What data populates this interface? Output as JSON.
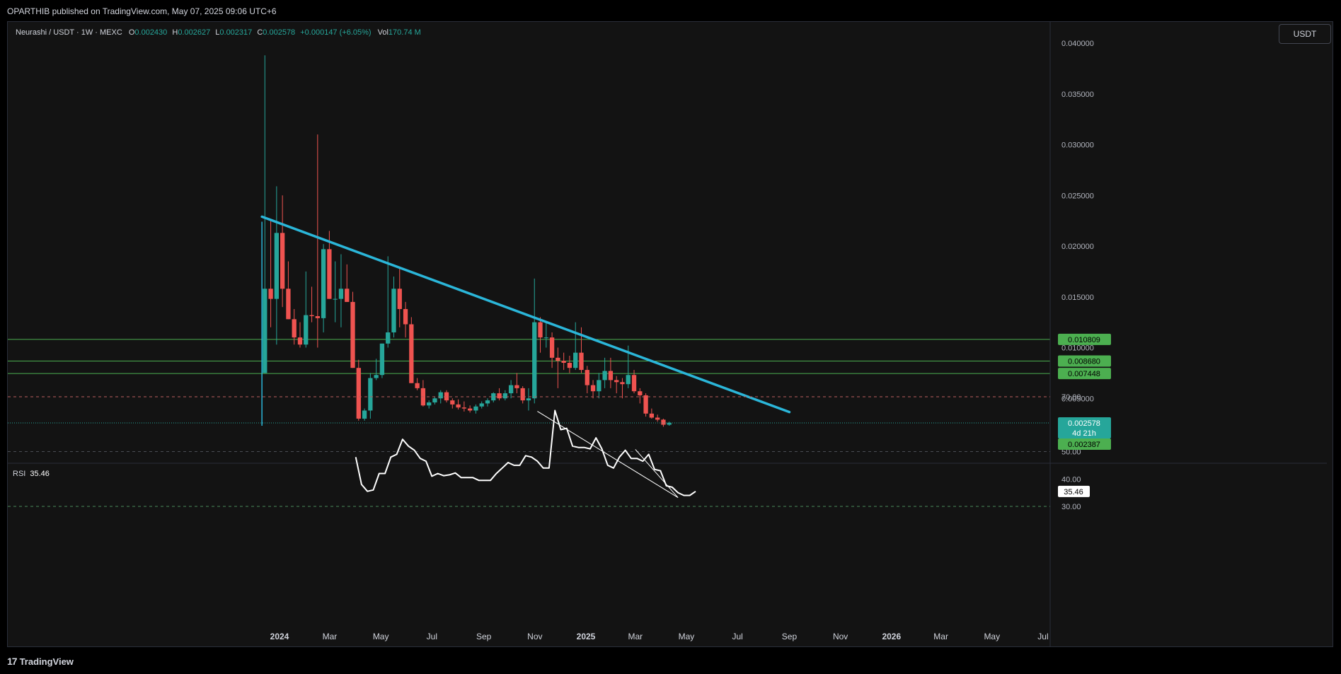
{
  "header": {
    "published": "OPARTHIB published on TradingView.com, May 07, 2025 09:06 UTC+6"
  },
  "footer": {
    "logo_text": "TradingView",
    "logo_mark": "17"
  },
  "legend": {
    "symbol": "Neurashi / USDT · 1W · MEXC",
    "o_label": "O",
    "o": "0.002430",
    "h_label": "H",
    "h": "0.002627",
    "l_label": "L",
    "l": "0.002317",
    "c_label": "C",
    "c": "0.002578",
    "change": "+0.000147 (+6.05%)",
    "vol_label": "Vol",
    "vol": "170.74 M"
  },
  "currency_button": "USDT",
  "rsi_legend": {
    "label": "RSI",
    "value": "35.46"
  },
  "colors": {
    "up": "#26a69a",
    "down": "#ef5350",
    "trendline": "#2bb6d9",
    "level": "#4caf50",
    "background": "#131313",
    "rsi_line": "#ffffff"
  },
  "chart_data": [
    {
      "type": "candlestick",
      "interval": "1W",
      "y_range": [
        0.0,
        0.04
      ],
      "y_ticks": [
        "0.040000",
        "0.035000",
        "0.030000",
        "0.025000",
        "0.020000",
        "0.015000",
        "0.010000",
        "0.005000"
      ],
      "x_ticks": [
        {
          "label": "2024",
          "date": "2024-01-01"
        },
        {
          "label": "Mar",
          "date": "2024-03-01"
        },
        {
          "label": "May",
          "date": "2024-05-01"
        },
        {
          "label": "Jul",
          "date": "2024-07-01"
        },
        {
          "label": "Sep",
          "date": "2024-09-01"
        },
        {
          "label": "Nov",
          "date": "2024-11-01"
        },
        {
          "label": "2025",
          "date": "2025-01-01"
        },
        {
          "label": "Mar",
          "date": "2025-03-01"
        },
        {
          "label": "May",
          "date": "2025-05-01"
        },
        {
          "label": "Jul",
          "date": "2025-07-01"
        },
        {
          "label": "Sep",
          "date": "2025-09-01"
        },
        {
          "label": "Nov",
          "date": "2025-11-01"
        },
        {
          "label": "2026",
          "date": "2026-01-01"
        },
        {
          "label": "Mar",
          "date": "2026-03-01"
        },
        {
          "label": "May",
          "date": "2026-05-01"
        },
        {
          "label": "Jul",
          "date": "2026-07-01"
        }
      ],
      "first_candle_date": "2023-12-11",
      "candles": [
        {
          "o": 0.0075,
          "h": 0.0388,
          "l": 0.0075,
          "c": 0.0158
        },
        {
          "o": 0.0158,
          "h": 0.0225,
          "l": 0.012,
          "c": 0.0148
        },
        {
          "o": 0.0148,
          "h": 0.0259,
          "l": 0.0103,
          "c": 0.0213
        },
        {
          "o": 0.0213,
          "h": 0.025,
          "l": 0.014,
          "c": 0.0158
        },
        {
          "o": 0.0158,
          "h": 0.0185,
          "l": 0.0128,
          "c": 0.0128
        },
        {
          "o": 0.0128,
          "h": 0.0138,
          "l": 0.0103,
          "c": 0.011
        },
        {
          "o": 0.011,
          "h": 0.0125,
          "l": 0.01,
          "c": 0.0103
        },
        {
          "o": 0.0103,
          "h": 0.0175,
          "l": 0.01,
          "c": 0.0132
        },
        {
          "o": 0.0132,
          "h": 0.016,
          "l": 0.0125,
          "c": 0.0131
        },
        {
          "o": 0.0131,
          "h": 0.031,
          "l": 0.01,
          "c": 0.0129
        },
        {
          "o": 0.0129,
          "h": 0.0202,
          "l": 0.0115,
          "c": 0.0197
        },
        {
          "o": 0.0197,
          "h": 0.0215,
          "l": 0.0148,
          "c": 0.0148
        },
        {
          "o": 0.0148,
          "h": 0.0185,
          "l": 0.0125,
          "c": 0.0148
        },
        {
          "o": 0.0148,
          "h": 0.0192,
          "l": 0.012,
          "c": 0.0158
        },
        {
          "o": 0.0158,
          "h": 0.0182,
          "l": 0.0145,
          "c": 0.0145
        },
        {
          "o": 0.0145,
          "h": 0.0155,
          "l": 0.008,
          "c": 0.008
        },
        {
          "o": 0.008,
          "h": 0.0088,
          "l": 0.0028,
          "c": 0.003
        },
        {
          "o": 0.003,
          "h": 0.004,
          "l": 0.0028,
          "c": 0.0038
        },
        {
          "o": 0.0038,
          "h": 0.0075,
          "l": 0.003,
          "c": 0.007
        },
        {
          "o": 0.007,
          "h": 0.0089,
          "l": 0.0068,
          "c": 0.0073
        },
        {
          "o": 0.0073,
          "h": 0.0104,
          "l": 0.007,
          "c": 0.0104
        },
        {
          "o": 0.0104,
          "h": 0.019,
          "l": 0.01,
          "c": 0.0115
        },
        {
          "o": 0.0115,
          "h": 0.017,
          "l": 0.011,
          "c": 0.0158
        },
        {
          "o": 0.0158,
          "h": 0.018,
          "l": 0.012,
          "c": 0.0138
        },
        {
          "o": 0.0138,
          "h": 0.0145,
          "l": 0.011,
          "c": 0.0123
        },
        {
          "o": 0.0123,
          "h": 0.013,
          "l": 0.0065,
          "c": 0.0065
        },
        {
          "o": 0.0065,
          "h": 0.007,
          "l": 0.0058,
          "c": 0.006
        },
        {
          "o": 0.006,
          "h": 0.0068,
          "l": 0.0042,
          "c": 0.0043
        },
        {
          "o": 0.0043,
          "h": 0.0048,
          "l": 0.004,
          "c": 0.0046
        },
        {
          "o": 0.0046,
          "h": 0.0052,
          "l": 0.0044,
          "c": 0.005
        },
        {
          "o": 0.005,
          "h": 0.0058,
          "l": 0.0045,
          "c": 0.0056
        },
        {
          "o": 0.0056,
          "h": 0.0058,
          "l": 0.0046,
          "c": 0.0048
        },
        {
          "o": 0.0048,
          "h": 0.005,
          "l": 0.004,
          "c": 0.0044
        },
        {
          "o": 0.0044,
          "h": 0.0049,
          "l": 0.0039,
          "c": 0.0041
        },
        {
          "o": 0.0041,
          "h": 0.0047,
          "l": 0.0037,
          "c": 0.004
        },
        {
          "o": 0.004,
          "h": 0.0043,
          "l": 0.0036,
          "c": 0.0038
        },
        {
          "o": 0.0038,
          "h": 0.0044,
          "l": 0.0035,
          "c": 0.0042
        },
        {
          "o": 0.0042,
          "h": 0.0047,
          "l": 0.004,
          "c": 0.0045
        },
        {
          "o": 0.0045,
          "h": 0.005,
          "l": 0.0042,
          "c": 0.0048
        },
        {
          "o": 0.0048,
          "h": 0.0056,
          "l": 0.0046,
          "c": 0.0055
        },
        {
          "o": 0.0055,
          "h": 0.006,
          "l": 0.0048,
          "c": 0.005
        },
        {
          "o": 0.005,
          "h": 0.0058,
          "l": 0.0048,
          "c": 0.0055
        },
        {
          "o": 0.0055,
          "h": 0.0068,
          "l": 0.005,
          "c": 0.0063
        },
        {
          "o": 0.0063,
          "h": 0.0075,
          "l": 0.0055,
          "c": 0.006
        },
        {
          "o": 0.006,
          "h": 0.0062,
          "l": 0.0045,
          "c": 0.0048
        },
        {
          "o": 0.0048,
          "h": 0.006,
          "l": 0.0038,
          "c": 0.005
        },
        {
          "o": 0.005,
          "h": 0.0168,
          "l": 0.0045,
          "c": 0.0125
        },
        {
          "o": 0.0125,
          "h": 0.013,
          "l": 0.0095,
          "c": 0.011
        },
        {
          "o": 0.011,
          "h": 0.0125,
          "l": 0.01,
          "c": 0.011
        },
        {
          "o": 0.011,
          "h": 0.0115,
          "l": 0.008,
          "c": 0.009
        },
        {
          "o": 0.009,
          "h": 0.01,
          "l": 0.006,
          "c": 0.0087
        },
        {
          "o": 0.0087,
          "h": 0.0095,
          "l": 0.0078,
          "c": 0.0085
        },
        {
          "o": 0.0085,
          "h": 0.0092,
          "l": 0.0075,
          "c": 0.008
        },
        {
          "o": 0.008,
          "h": 0.0125,
          "l": 0.0078,
          "c": 0.0095
        },
        {
          "o": 0.0095,
          "h": 0.012,
          "l": 0.0075,
          "c": 0.0078
        },
        {
          "o": 0.0078,
          "h": 0.0082,
          "l": 0.0055,
          "c": 0.0063
        },
        {
          "o": 0.0063,
          "h": 0.0068,
          "l": 0.005,
          "c": 0.0057
        },
        {
          "o": 0.0057,
          "h": 0.0075,
          "l": 0.005,
          "c": 0.0068
        },
        {
          "o": 0.0068,
          "h": 0.009,
          "l": 0.006,
          "c": 0.0077
        },
        {
          "o": 0.0077,
          "h": 0.009,
          "l": 0.006,
          "c": 0.0068
        },
        {
          "o": 0.0068,
          "h": 0.0072,
          "l": 0.0055,
          "c": 0.0066
        },
        {
          "o": 0.0066,
          "h": 0.007,
          "l": 0.005,
          "c": 0.0064
        },
        {
          "o": 0.0064,
          "h": 0.0102,
          "l": 0.006,
          "c": 0.0073
        },
        {
          "o": 0.0073,
          "h": 0.0078,
          "l": 0.0055,
          "c": 0.0057
        },
        {
          "o": 0.0057,
          "h": 0.006,
          "l": 0.0045,
          "c": 0.0053
        },
        {
          "o": 0.0053,
          "h": 0.0055,
          "l": 0.0032,
          "c": 0.0035
        },
        {
          "o": 0.0035,
          "h": 0.004,
          "l": 0.003,
          "c": 0.0031
        },
        {
          "o": 0.0031,
          "h": 0.0034,
          "l": 0.0027,
          "c": 0.0029
        },
        {
          "o": 0.0029,
          "h": 0.003,
          "l": 0.0022,
          "c": 0.0024
        },
        {
          "o": 0.0024,
          "h": 0.0027,
          "l": 0.0023,
          "c": 0.0026
        }
      ],
      "horizontal_levels": [
        {
          "price": 0.010809,
          "label": "0.010809"
        },
        {
          "price": 0.00868,
          "label": "0.008680"
        },
        {
          "price": 0.007448,
          "label": "0.007448"
        }
      ],
      "current_price": {
        "price": 0.002578,
        "label": "0.002578",
        "countdown": "4d 21h"
      },
      "low_marker": {
        "price": 0.002387,
        "label": "0.002387"
      },
      "trendline": {
        "start": {
          "date": "2023-12-11",
          "price": 0.0229
        },
        "end": {
          "date": "2025-09-01",
          "price": 0.00365
        }
      },
      "vertical_marker": {
        "date": "2023-12-11",
        "from": 0.0023,
        "to": 0.0224
      }
    },
    {
      "type": "line",
      "name": "RSI",
      "y_range": [
        27,
        73
      ],
      "y_ticks": [
        "70.00",
        "60.00",
        "50.00",
        "40.00",
        "30.00"
      ],
      "bands": [
        70,
        50,
        30
      ],
      "first_point_date": "2024-04-01",
      "values": [
        48,
        38,
        35.5,
        36,
        42,
        42,
        48,
        49,
        54.5,
        52,
        50.5,
        47.5,
        46.5,
        41,
        42,
        41.2,
        41.5,
        42.2,
        40.5,
        40.5,
        40.5,
        39.5,
        39.5,
        39.5,
        42,
        44,
        46,
        45,
        45,
        48.5,
        48,
        46.5,
        44,
        44,
        65,
        58,
        58.5,
        52,
        51.5,
        51.5,
        51,
        55,
        51,
        45,
        44,
        48,
        50.5,
        47.5,
        47.5,
        46.5,
        49,
        43.5,
        43,
        37.5,
        37,
        35,
        34,
        34,
        35.46
      ],
      "current_label": "35.46",
      "trendlines": [
        {
          "start": {
            "date": "2024-11-04",
            "value": 64.7
          },
          "end": {
            "date": "2025-04-21",
            "value": 33.2
          }
        },
        {
          "start": {
            "date": "2025-03-01",
            "value": 50.8
          },
          "end": {
            "date": "2025-04-21",
            "value": 33.2
          }
        }
      ]
    }
  ]
}
